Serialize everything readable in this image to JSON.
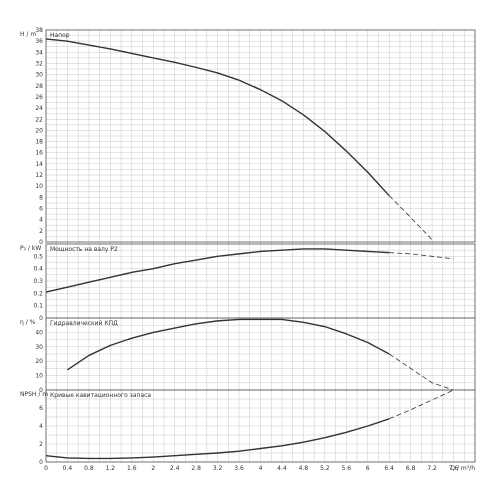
{
  "chart_data": {
    "type": "line",
    "grid": true,
    "colors": {
      "curve": "#333333",
      "grid": "#c8c8c8",
      "frame": "#555555",
      "text": "#333333"
    },
    "x_axis": {
      "label": "Q / m³/h",
      "range": [
        0,
        8.0
      ],
      "ticks": [
        0,
        0.4,
        0.8,
        1.2,
        1.6,
        2,
        2.4,
        2.8,
        3.2,
        3.6,
        4,
        4.4,
        4.8,
        5.2,
        5.6,
        6,
        6.4,
        6.8,
        7.2,
        7.6
      ],
      "tick_labels": [
        "0",
        "0.4",
        "0.8",
        "1.2",
        "1.6",
        "2",
        "2.4",
        "2.8",
        "3.2",
        "3.6",
        "4",
        "4.4",
        "4.8",
        "5.2",
        "5.6",
        "6",
        "6.4",
        "6.8",
        "7.2",
        "7.6"
      ]
    },
    "panels": [
      {
        "id": "head",
        "axis_label": "H / m",
        "title": "Напор",
        "ylim": [
          0,
          38
        ],
        "yticks": [
          0,
          2,
          4,
          6,
          8,
          10,
          12,
          14,
          16,
          18,
          20,
          22,
          24,
          26,
          28,
          30,
          32,
          34,
          36,
          38
        ],
        "solid": {
          "x": [
            0,
            0.4,
            0.8,
            1.2,
            1.6,
            2.0,
            2.4,
            2.8,
            3.2,
            3.6,
            4.0,
            4.4,
            4.8,
            5.2,
            5.6,
            6.0,
            6.4
          ],
          "y": [
            36.4,
            36.0,
            35.3,
            34.6,
            33.8,
            33.0,
            32.2,
            31.3,
            30.3,
            29.0,
            27.3,
            25.3,
            22.8,
            19.8,
            16.3,
            12.5,
            8.3
          ]
        },
        "dashed": {
          "x": [
            6.4,
            6.8,
            7.2
          ],
          "y": [
            8.3,
            4.4,
            0.4
          ]
        }
      },
      {
        "id": "power",
        "axis_label": "P₂ / kW",
        "title": "Мощность на валу P2",
        "ylim": [
          0,
          0.6
        ],
        "yticks": [
          0,
          0.1,
          0.2,
          0.3,
          0.4,
          0.5
        ],
        "solid": {
          "x": [
            0,
            0.4,
            0.8,
            1.2,
            1.6,
            2.0,
            2.4,
            2.8,
            3.2,
            3.6,
            4.0,
            4.4,
            4.8,
            5.2,
            5.6,
            6.0,
            6.4
          ],
          "y": [
            0.21,
            0.25,
            0.29,
            0.33,
            0.37,
            0.4,
            0.44,
            0.47,
            0.5,
            0.52,
            0.54,
            0.55,
            0.56,
            0.56,
            0.55,
            0.54,
            0.53
          ]
        },
        "dashed": {
          "x": [
            6.4,
            6.8,
            7.2,
            7.6
          ],
          "y": [
            0.53,
            0.52,
            0.5,
            0.48
          ]
        }
      },
      {
        "id": "efficiency",
        "axis_label": "η / %",
        "title": "Гидравлический КПД",
        "ylim": [
          0,
          50
        ],
        "yticks": [
          0,
          10,
          20,
          30,
          40
        ],
        "solid": {
          "x": [
            0.4,
            0.8,
            1.2,
            1.6,
            2.0,
            2.4,
            2.8,
            3.2,
            3.6,
            4.0,
            4.4,
            4.8,
            5.2,
            5.6,
            6.0,
            6.4
          ],
          "y": [
            14,
            24,
            31,
            36,
            40,
            43,
            46,
            48,
            49,
            49,
            49,
            47,
            44,
            39,
            33,
            25
          ]
        },
        "dashed": {
          "x": [
            6.4,
            6.8,
            7.2,
            7.6
          ],
          "y": [
            25,
            15,
            5,
            0
          ]
        }
      },
      {
        "id": "npsh",
        "axis_label": "NPSH / m",
        "title": "Кривые кавитационного запаса",
        "ylim": [
          0,
          8
        ],
        "yticks": [
          0,
          2,
          4,
          6
        ],
        "solid": {
          "x": [
            0,
            0.4,
            0.8,
            1.2,
            1.6,
            2.0,
            2.4,
            2.8,
            3.2,
            3.6,
            4.0,
            4.4,
            4.8,
            5.2,
            5.6,
            6.0,
            6.4
          ],
          "y": [
            0.7,
            0.45,
            0.4,
            0.4,
            0.45,
            0.55,
            0.7,
            0.85,
            1.0,
            1.2,
            1.5,
            1.8,
            2.2,
            2.7,
            3.3,
            4.0,
            4.8
          ]
        },
        "dashed": {
          "x": [
            6.4,
            6.8,
            7.2,
            7.6
          ],
          "y": [
            4.8,
            5.8,
            6.9,
            8.0
          ]
        }
      }
    ]
  }
}
